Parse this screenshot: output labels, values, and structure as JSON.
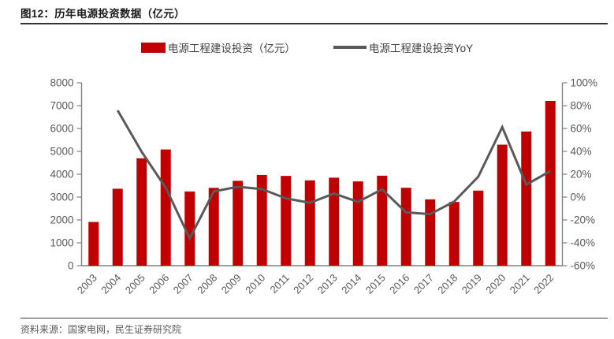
{
  "header": {
    "title": "图12：历年电源投资数据（亿元）"
  },
  "footer": {
    "source": "资料来源：国家电网，民生证券研究院"
  },
  "colors": {
    "bar": "#c00000",
    "line": "#595959",
    "axis": "#808080",
    "axis_label": "#595959",
    "title_text": "#1a1a1a",
    "rule": "#333333"
  },
  "chart_data": {
    "type": "bar",
    "subtype": "combo-bar-line-dual-axis",
    "title": "历年电源投资数据（亿元）",
    "categories": [
      "2003",
      "2004",
      "2005",
      "2006",
      "2007",
      "2008",
      "2009",
      "2010",
      "2011",
      "2012",
      "2013",
      "2014",
      "2015",
      "2016",
      "2017",
      "2018",
      "2019",
      "2020",
      "2021",
      "2022"
    ],
    "series": [
      {
        "name": "电源工程建设投资（亿元）",
        "type": "bar",
        "y_axis": "left",
        "color": "#c00000",
        "values": [
          1913,
          3365,
          4697,
          5083,
          3246,
          3404,
          3711,
          3969,
          3927,
          3732,
          3849,
          3686,
          3936,
          3408,
          2900,
          2787,
          3283,
          5292,
          5870,
          7208
        ]
      },
      {
        "name": "电源工程建设投资YoY",
        "type": "line",
        "y_axis": "right",
        "color": "#595959",
        "values": [
          null,
          75.9,
          39.6,
          8.2,
          -36.1,
          4.9,
          9.0,
          7.0,
          -1.1,
          -5.0,
          3.1,
          -4.2,
          6.8,
          -13.4,
          -14.9,
          -3.9,
          17.8,
          61.2,
          10.9,
          22.8
        ]
      }
    ],
    "left_axis": {
      "min": 0,
      "max": 8000,
      "step": 1000,
      "suffix": ""
    },
    "right_axis": {
      "min": -60,
      "max": 100,
      "step": 20,
      "suffix": "%"
    },
    "grid": false,
    "legend_position": "top-center",
    "x_label_rotation": -45
  }
}
